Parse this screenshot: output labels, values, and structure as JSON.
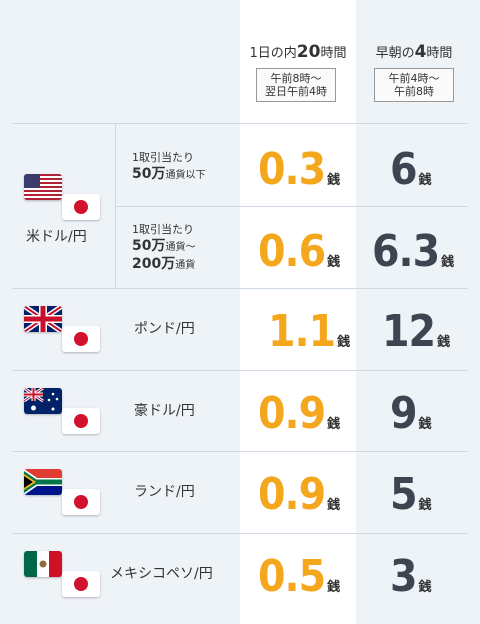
{
  "header": {
    "col20_title_pre": "1日の内",
    "col20_title_num": "20",
    "col20_title_post": "時間",
    "col20_sub_line1": "午前8時～",
    "col20_sub_line2": "翌日午前4時",
    "col4_title_pre": "早朝の",
    "col4_title_num": "4",
    "col4_title_post": "時間",
    "col4_sub_line1": "午前4時～",
    "col4_sub_line2": "午前8時"
  },
  "unit": "銭",
  "rows": [
    {
      "pair": "米ドル/円",
      "flag": "us-flag-icon",
      "tiers": [
        {
          "line1": "1取引当たり",
          "line2_big": "50万",
          "line2_small": "通貨以下",
          "val20": "0.3",
          "val4": "6"
        },
        {
          "line1": "1取引当たり",
          "line2_big": "50万",
          "line2_small": "通貨～",
          "line3_big": "200万",
          "line3_small": "通貨",
          "val20": "0.6",
          "val4": "6.3"
        }
      ]
    },
    {
      "pair": "ポンド/円",
      "flag": "uk-flag-icon",
      "val20": "1.1",
      "val4": "12"
    },
    {
      "pair": "豪ドル/円",
      "flag": "au-flag-icon",
      "val20": "0.9",
      "val4": "9"
    },
    {
      "pair": "ランド/円",
      "flag": "za-flag-icon",
      "val20": "0.9",
      "val4": "5"
    },
    {
      "pair": "メキシコペソ/円",
      "flag": "mx-flag-icon",
      "val20": "0.5",
      "val4": "3"
    }
  ],
  "colors": {
    "accent": "#f4a71c",
    "dark": "#3e4450",
    "jp_red": "#d3112d"
  }
}
